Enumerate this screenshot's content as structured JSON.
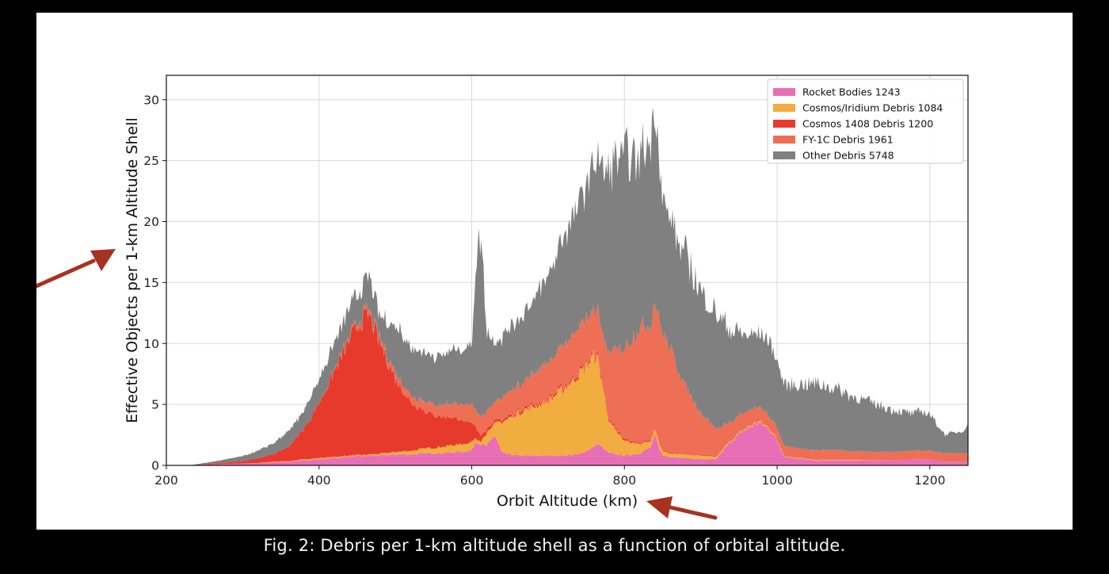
{
  "caption": "Fig. 2: Debris per 1-km altitude shell as a function of orbital altitude.",
  "colors": {
    "background": "#000000",
    "panel": "#ffffff",
    "arrow": "#a83220",
    "grid": "#d9d9d9"
  },
  "annotations": {
    "arrows": [
      {
        "points_to": "y-axis label",
        "color": "#a83220"
      },
      {
        "points_to": "x-axis label",
        "color": "#a83220"
      }
    ]
  },
  "chart_data": {
    "type": "area",
    "stacked": true,
    "title": "",
    "xlabel": "Orbit Altitude (km)",
    "ylabel": "Effective Objects per 1-km Altitude Shell",
    "xlim": [
      200,
      1250
    ],
    "ylim": [
      0,
      32
    ],
    "xticks": [
      200,
      400,
      600,
      800,
      1000,
      1200
    ],
    "yticks": [
      0,
      5,
      10,
      15,
      20,
      25,
      30
    ],
    "grid": true,
    "legend_position": "top-right",
    "x": [
      200,
      230,
      250,
      270,
      300,
      320,
      340,
      360,
      380,
      400,
      420,
      440,
      455,
      465,
      480,
      500,
      520,
      540,
      560,
      580,
      600,
      605,
      612,
      620,
      630,
      640,
      660,
      680,
      700,
      720,
      740,
      760,
      765,
      770,
      780,
      800,
      820,
      835,
      840,
      845,
      850,
      860,
      880,
      900,
      920,
      940,
      960,
      975,
      990,
      1000,
      1010,
      1050,
      1080,
      1100,
      1150,
      1180,
      1190,
      1200,
      1220,
      1240,
      1250
    ],
    "series": [
      {
        "name": "Rocket Bodies  1243",
        "color": "#e86fb6",
        "values": [
          0,
          0,
          0.05,
          0.1,
          0.15,
          0.2,
          0.25,
          0.3,
          0.4,
          0.5,
          0.6,
          0.7,
          0.75,
          0.8,
          0.8,
          0.9,
          0.9,
          1.0,
          1.0,
          1.1,
          1.2,
          2.0,
          1.7,
          1.6,
          2.5,
          1.0,
          0.8,
          0.8,
          0.8,
          0.8,
          0.9,
          1.5,
          1.8,
          1.5,
          1.0,
          0.8,
          1.0,
          1.5,
          2.5,
          1.5,
          0.8,
          0.7,
          0.6,
          0.5,
          0.5,
          2.0,
          3.0,
          3.5,
          3.0,
          2.0,
          0.7,
          0.4,
          0.4,
          0.4,
          0.4,
          0.5,
          0.5,
          0.5,
          0.3,
          0.3,
          0.3
        ]
      },
      {
        "name": "Cosmos/Iridium Debris  1084",
        "color": "#f2ad40",
        "values": [
          0,
          0,
          0,
          0,
          0,
          0,
          0.05,
          0.05,
          0.1,
          0.1,
          0.1,
          0.1,
          0.1,
          0.1,
          0.15,
          0.2,
          0.3,
          0.4,
          0.5,
          0.6,
          0.7,
          0.3,
          0.3,
          1.0,
          1.0,
          2.5,
          3.5,
          4.0,
          4.5,
          5.5,
          6.5,
          7.5,
          7.0,
          5.5,
          2.5,
          1.2,
          0.8,
          0.5,
          0.5,
          0.5,
          0.4,
          0.3,
          0.3,
          0.3,
          0.2,
          0.1,
          0.1,
          0.1,
          0.1,
          0.1,
          0.05,
          0.05,
          0.05,
          0.05,
          0,
          0,
          0,
          0,
          0,
          0,
          0
        ]
      },
      {
        "name": "Cosmos 1408 Debris  1200",
        "color": "#e83a2c",
        "values": [
          0,
          0,
          0.05,
          0.1,
          0.2,
          0.4,
          0.6,
          1.2,
          2.5,
          4.5,
          7.0,
          9.5,
          11.0,
          11.5,
          9.0,
          6.0,
          4.0,
          3.0,
          2.5,
          2.2,
          1.5,
          1.0,
          0.5,
          0.3,
          0.2,
          0.2,
          0.2,
          0.2,
          0.2,
          0.2,
          0.2,
          0.2,
          0.2,
          0.2,
          0.15,
          0.15,
          0.1,
          0.1,
          0.1,
          0.1,
          0.1,
          0.05,
          0.05,
          0.05,
          0.05,
          0,
          0,
          0,
          0,
          0,
          0,
          0,
          0,
          0,
          0,
          0,
          0,
          0,
          0,
          0,
          0
        ]
      },
      {
        "name": "FY-1C Debris  1961",
        "color": "#ee6f55",
        "values": [
          0,
          0,
          0,
          0,
          0,
          0,
          0,
          0,
          0,
          0,
          0.1,
          0.2,
          0.3,
          0.3,
          0.4,
          0.5,
          0.6,
          0.8,
          1.0,
          1.2,
          1.5,
          1.3,
          1.5,
          1.5,
          1.5,
          1.8,
          2.0,
          2.5,
          3.0,
          3.3,
          3.8,
          3.5,
          3.7,
          3.8,
          5.5,
          7.5,
          9.5,
          9.5,
          10.5,
          10.0,
          9.5,
          8.5,
          5.5,
          3.5,
          2.2,
          1.5,
          1.3,
          1.2,
          1.0,
          1.0,
          0.8,
          0.8,
          0.8,
          0.7,
          0.7,
          0.7,
          0.7,
          0.7,
          0.7,
          0.7,
          0.7
        ]
      },
      {
        "name": "Other Debris  5748",
        "color": "#808080",
        "values": [
          0,
          0,
          0.1,
          0.2,
          0.4,
          0.6,
          0.9,
          1.2,
          1.5,
          1.9,
          2.2,
          2.3,
          2.3,
          2.8,
          1.8,
          4.0,
          4.0,
          4.0,
          4.0,
          4.5,
          4.8,
          12.0,
          15.0,
          6.5,
          5.0,
          5.0,
          5.5,
          6.0,
          7.0,
          9.0,
          10.0,
          12.0,
          13.0,
          13.0,
          15.0,
          16.0,
          14.0,
          15.5,
          16.5,
          14.0,
          11.0,
          10.5,
          10.8,
          10.0,
          9.5,
          7.5,
          6.2,
          6.0,
          6.2,
          5.5,
          5.0,
          5.5,
          5.0,
          4.5,
          3.5,
          3.0,
          3.3,
          3.0,
          1.5,
          1.8,
          2.3
        ]
      }
    ]
  }
}
